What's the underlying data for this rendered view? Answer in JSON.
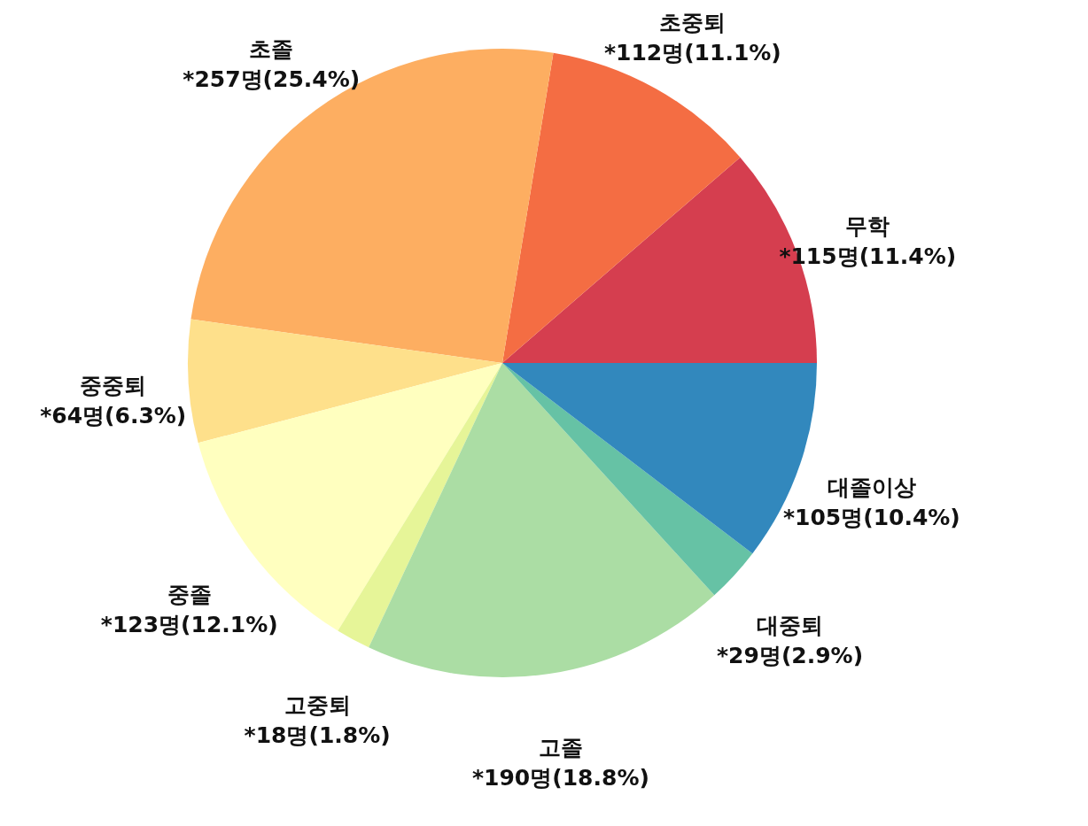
{
  "chart_data": {
    "type": "pie",
    "categories": [
      "무학",
      "초중퇴",
      "초졸",
      "중중퇴",
      "중졸",
      "고중퇴",
      "고졸",
      "대중퇴",
      "대졸이상"
    ],
    "values": [
      115,
      112,
      257,
      64,
      123,
      18,
      190,
      29,
      105
    ],
    "value_labels": [
      "*115명(11.4%)",
      "*112명(11.1%)",
      "*257명(25.4%)",
      "*64명(6.3%)",
      "*123명(12.1%)",
      "*18명(1.8%)",
      "*190명(18.8%)",
      "*29명(2.9%)",
      "*105명(10.4%)"
    ],
    "colors": [
      "#d53e4f",
      "#f46d43",
      "#fdae61",
      "#fee08b",
      "#ffffbf",
      "#e6f598",
      "#abdda4",
      "#66c2a5",
      "#3288bd"
    ],
    "legend": false
  }
}
